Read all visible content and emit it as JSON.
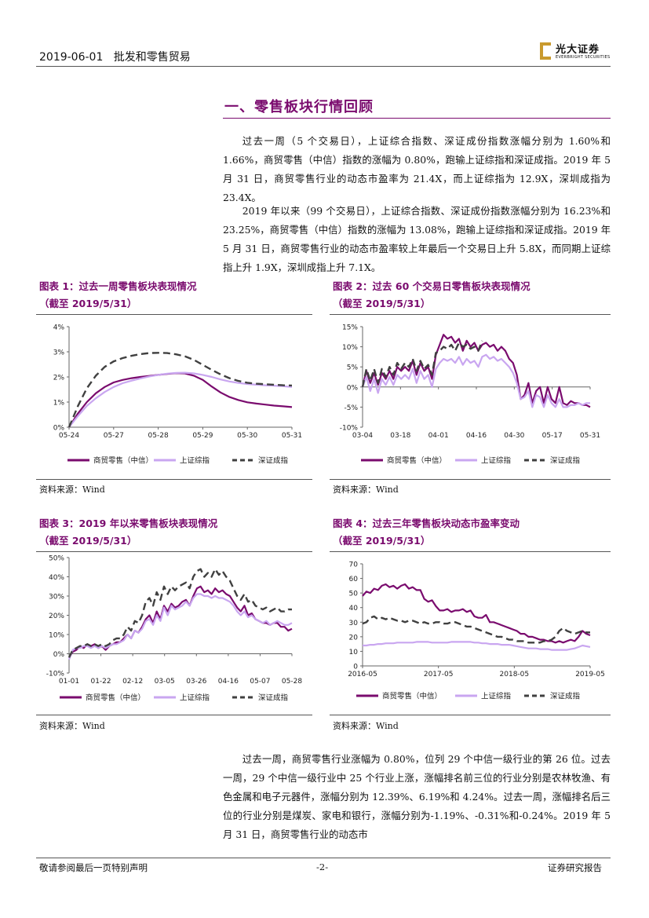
{
  "header": {
    "date": "2019-06-01",
    "category": "批发和零售贸易",
    "logo_cn": "光大证券",
    "logo_en": "EVERBRIGHT SECURITIES"
  },
  "section": {
    "title": "一、零售板块行情回顾"
  },
  "paragraphs": {
    "p1": "过去一周（5 个交易日），上证综合指数、深证成份指数涨幅分别为 1.60%和 1.66%，商贸零售（中信）指数的涨幅为 0.80%，跑输上证综指和深证成指。2019 年 5 月 31 日，商贸零售行业的动态市盈率为 21.4X，而上证综指为 12.9X，深圳成指为 23.4X。",
    "p2": "2019 年以来（99 个交易日），上证综合指数、深证成份指数涨幅分别为 16.23%和 23.25%，商贸零售（中信）指数的涨幅为 13.08%，跑输上证综指和深证成指。2019 年 5 月 31 日，商贸零售行业的动态市盈率较上年最后一个交易日上升 5.8X，而同期上证综指上升 1.9X，深圳成指上升 7.1X。",
    "p3": "过去一周，商贸零售行业涨幅为 0.80%，位列 29 个中信一级行业的第 26 位。过去一周，29 个中信一级行业中 25 个行业上涨，涨幅排名前三位的行业分别是农林牧渔、有色金属和电子元器件，涨幅分别为 12.39%、6.19%和 4.24%。过去一周，涨幅排名后三位的行业分别是煤炭、家电和银行，涨幅分别为-1.19%、-0.31%和-0.24%。2019 年 5 月 31 日，商贸零售行业的动态市"
  },
  "colors": {
    "retail": "#7a0b6e",
    "shanghai": "#c9a6f0",
    "shenzhen": "#404040",
    "title": "#7a0b6e"
  },
  "figures": {
    "fig1": {
      "title": "图表 1：过去一周零售板块表现情况",
      "subtitle": "（截至 2019/5/31）",
      "source": "资料来源：Wind"
    },
    "fig2": {
      "title": "图表 2：过去 60 个交易日零售板块表现情况",
      "subtitle": "（截至 2019/5/31）",
      "source": "资料来源：Wind"
    },
    "fig3": {
      "title": "图表 3：2019 年以来零售板块表现情况",
      "subtitle": "（截至 2019/5/31）",
      "source": "资料来源：Wind"
    },
    "fig4": {
      "title": "图表 4：过去三年零售板块动态市盈率变动",
      "subtitle": "（截至 2019/5/31）",
      "source": "资料来源：Wind"
    }
  },
  "chart_data": [
    {
      "id": "fig1",
      "type": "line",
      "title": "过去一周零售板块表现情况",
      "x_ticks": [
        "05-24",
        "05-27",
        "05-28",
        "05-29",
        "05-30",
        "05-31"
      ],
      "y_ticks": [
        "0%",
        "1%",
        "2%",
        "3%",
        "4%"
      ],
      "ylim": [
        0,
        4
      ],
      "x": [
        0,
        0.2,
        0.4,
        0.6,
        0.8,
        1.0,
        1.2,
        1.4,
        1.6,
        1.8,
        2.0,
        2.2,
        2.4,
        2.6,
        2.8,
        3.0,
        3.2,
        3.4,
        3.6,
        3.8,
        4.0,
        4.2,
        4.4,
        4.6,
        4.8,
        5.0
      ],
      "series": [
        {
          "name": "商贸零售（中信）",
          "style": "solid",
          "values": [
            0,
            0.55,
            1.0,
            1.35,
            1.6,
            1.78,
            1.88,
            1.95,
            2.0,
            2.04,
            2.08,
            2.12,
            2.15,
            2.14,
            2.05,
            1.88,
            1.62,
            1.38,
            1.2,
            1.08,
            0.99,
            0.94,
            0.9,
            0.86,
            0.83,
            0.8
          ]
        },
        {
          "name": "上证综指",
          "style": "solid",
          "values": [
            0,
            0.45,
            0.85,
            1.15,
            1.4,
            1.6,
            1.75,
            1.85,
            1.94,
            2.02,
            2.08,
            2.13,
            2.16,
            2.17,
            2.14,
            2.08,
            2.0,
            1.9,
            1.82,
            1.76,
            1.72,
            1.69,
            1.67,
            1.65,
            1.63,
            1.6
          ]
        },
        {
          "name": "深证成指",
          "style": "dashed",
          "values": [
            0,
            0.85,
            1.55,
            2.05,
            2.4,
            2.62,
            2.75,
            2.84,
            2.91,
            2.95,
            2.96,
            2.95,
            2.9,
            2.82,
            2.68,
            2.48,
            2.28,
            2.1,
            1.95,
            1.84,
            1.77,
            1.73,
            1.71,
            1.69,
            1.67,
            1.66
          ]
        }
      ]
    },
    {
      "id": "fig2",
      "type": "line",
      "title": "过去 60 个交易日零售板块表现情况",
      "x_ticks": [
        "03-04",
        "03-18",
        "04-01",
        "04-16",
        "04-30",
        "05-17",
        "05-31"
      ],
      "y_ticks": [
        "-10%",
        "-5%",
        "0%",
        "5%",
        "10%",
        "15%"
      ],
      "ylim": [
        -10,
        15
      ],
      "series": [
        {
          "name": "商贸零售（中信）",
          "style": "solid",
          "values": [
            0,
            4.0,
            1.0,
            3.5,
            0.5,
            3.5,
            2.0,
            4.0,
            2.0,
            5.0,
            4.0,
            5.0,
            4.0,
            6.5,
            3.0,
            6.0,
            4.0,
            5.0,
            2.0,
            8.0,
            10.5,
            13.0,
            12.0,
            12.5,
            11.0,
            12.0,
            9.0,
            11.5,
            10.0,
            11.0,
            9.0,
            10.5,
            11.0,
            10.0,
            10.5,
            9.0,
            10.0,
            9.0,
            7.0,
            6.0,
            3.0,
            -3.0,
            -2.0,
            1.0,
            -4.0,
            -1.0,
            0.0,
            -4.0,
            0.0,
            -3.0,
            -4.0,
            0.0,
            -4.0,
            -4.5,
            -3.5,
            -4.0,
            -4.0,
            -4.5,
            -4.5,
            -5.0
          ]
        },
        {
          "name": "上证综指",
          "style": "solid",
          "values": [
            0,
            2.5,
            -1.0,
            2.0,
            -1.5,
            2.0,
            0.5,
            2.5,
            0.5,
            3.0,
            2.0,
            3.0,
            2.0,
            4.5,
            1.0,
            4.0,
            2.0,
            3.0,
            0.0,
            4.5,
            6.0,
            7.0,
            6.5,
            7.0,
            6.0,
            7.5,
            5.5,
            7.0,
            6.0,
            6.5,
            5.0,
            7.5,
            8.0,
            7.0,
            7.5,
            6.5,
            7.0,
            6.0,
            5.0,
            3.5,
            1.0,
            -3.0,
            -2.5,
            -1.0,
            -5.0,
            -2.0,
            -2.5,
            -5.0,
            -2.0,
            -4.0,
            -5.0,
            -3.0,
            -5.0,
            -5.0,
            -4.5,
            -4.5,
            -4.0,
            -4.5,
            -4.0,
            -4.0
          ]
        },
        {
          "name": "深证成指",
          "style": "dashed",
          "values": [
            0,
            4.5,
            1.5,
            4.5,
            1.0,
            4.5,
            2.5,
            5.0,
            3.0,
            6.0,
            4.5,
            6.0,
            5.0,
            7.0,
            4.0,
            6.5,
            4.5,
            5.5,
            3.0,
            8.5,
            9.0,
            10.0,
            9.5,
            10.5,
            9.0,
            11.0,
            10.0,
            10.5,
            9.5,
            10.0,
            9.0,
            11.5
          ]
        }
      ]
    },
    {
      "id": "fig3",
      "type": "line",
      "title": "2019 年以来零售板块表现情况",
      "x_ticks": [
        "01-01",
        "01-22",
        "02-12",
        "03-05",
        "03-26",
        "04-16",
        "05-07",
        "05-28"
      ],
      "y_ticks": [
        "-10%",
        "0%",
        "10%",
        "20%",
        "30%",
        "40%",
        "50%"
      ],
      "ylim": [
        -10,
        50
      ],
      "series": [
        {
          "name": "商贸零售（中信）",
          "style": "solid",
          "values": [
            -2,
            1,
            2,
            4,
            3,
            5,
            4,
            5,
            3,
            4,
            2,
            4,
            5,
            6,
            6,
            8,
            10,
            8,
            12,
            11,
            14,
            18,
            20,
            16,
            22,
            18,
            25,
            22,
            26,
            24,
            25,
            27,
            28,
            25,
            30,
            34,
            35,
            32,
            33,
            31,
            34,
            32,
            33,
            31,
            30,
            27,
            24,
            22,
            25,
            20,
            21,
            18,
            17,
            16,
            16,
            15,
            16,
            16,
            14,
            14,
            12,
            13
          ]
        },
        {
          "name": "上证综指",
          "style": "solid",
          "values": [
            -3,
            2,
            3,
            3,
            4,
            4,
            3,
            4,
            3,
            4,
            3,
            4,
            5,
            5,
            6,
            7,
            10,
            8,
            12,
            11,
            13,
            17,
            18,
            15,
            20,
            17,
            24,
            20,
            25,
            23,
            24,
            25,
            27,
            25,
            29,
            31,
            31,
            30,
            30,
            29,
            30,
            29,
            29,
            28,
            27,
            25,
            22,
            20,
            22,
            19,
            20,
            18,
            17,
            16,
            17,
            15,
            16,
            17,
            16,
            15,
            15,
            16
          ]
        },
        {
          "name": "深证成指",
          "style": "dashed",
          "values": [
            -2,
            2,
            3,
            4,
            4,
            5,
            4,
            5,
            4,
            5,
            4,
            5,
            7,
            8,
            8,
            10,
            14,
            12,
            17,
            16,
            20,
            27,
            29,
            25,
            32,
            28,
            35,
            31,
            35,
            33,
            35,
            36,
            37,
            34,
            40,
            43,
            44,
            40,
            42,
            40,
            44,
            41,
            43,
            40,
            38,
            34,
            30,
            28,
            31,
            27,
            28,
            25,
            24,
            23,
            24,
            22,
            23,
            24,
            22,
            22,
            23,
            23
          ]
        }
      ]
    },
    {
      "id": "fig4",
      "type": "line",
      "title": "过去三年零售板块动态市盈率变动",
      "x_ticks": [
        "2016-05",
        "2017-05",
        "2018-05",
        "2019-05"
      ],
      "y_ticks": [
        "0",
        "10",
        "20",
        "30",
        "40",
        "50",
        "60",
        "70"
      ],
      "ylim": [
        0,
        70
      ],
      "series": [
        {
          "name": "商贸零售（中信）",
          "style": "solid",
          "values": [
            48,
            51,
            50,
            53,
            52,
            55,
            56,
            54,
            55,
            53,
            55,
            56,
            53,
            54,
            52,
            52,
            46,
            44,
            45,
            41,
            38,
            38,
            39,
            37,
            38,
            38,
            39,
            37,
            38,
            34,
            33,
            33,
            35,
            30,
            30,
            29,
            28,
            27,
            26,
            25,
            24,
            22,
            22,
            20,
            20,
            19,
            18,
            18,
            17,
            17,
            16,
            17,
            16,
            17,
            18,
            17,
            20,
            24,
            22,
            21
          ]
        },
        {
          "name": "上证综指",
          "style": "solid",
          "values": [
            14,
            14,
            14.5,
            14.5,
            15,
            15,
            15.5,
            15.5,
            15.5,
            16,
            16,
            16,
            16,
            16,
            16.5,
            16.5,
            16.5,
            16.5,
            16,
            16,
            16,
            16,
            16,
            16.5,
            16.5,
            16.5,
            16.5,
            16.5,
            16.5,
            16,
            16,
            15.5,
            15.5,
            15,
            15,
            15,
            14.5,
            14.5,
            14.5,
            14,
            13.5,
            13,
            12.5,
            12,
            12,
            12,
            11.5,
            11.5,
            11.5,
            11,
            11,
            11,
            11,
            11,
            11.5,
            12,
            13,
            14,
            13.5,
            13
          ]
        },
        {
          "name": "深证成指",
          "style": "dashed",
          "values": [
            29,
            30,
            33,
            34,
            32,
            33,
            32,
            33,
            32,
            31,
            31,
            30,
            31,
            31,
            30,
            29,
            30,
            29,
            29,
            30,
            30,
            29,
            29,
            30,
            30,
            29,
            28,
            27,
            27,
            26,
            25,
            24,
            23,
            22,
            21,
            20,
            20,
            19,
            18,
            18,
            17,
            17,
            17,
            16,
            16,
            16,
            16,
            17,
            17,
            18,
            20,
            24,
            26,
            24,
            23,
            22,
            23,
            24,
            23,
            23
          ]
        }
      ]
    }
  ],
  "footer": {
    "left": "敬请参阅最后一页特别声明",
    "page": "-2-",
    "right": "证券研究报告"
  }
}
